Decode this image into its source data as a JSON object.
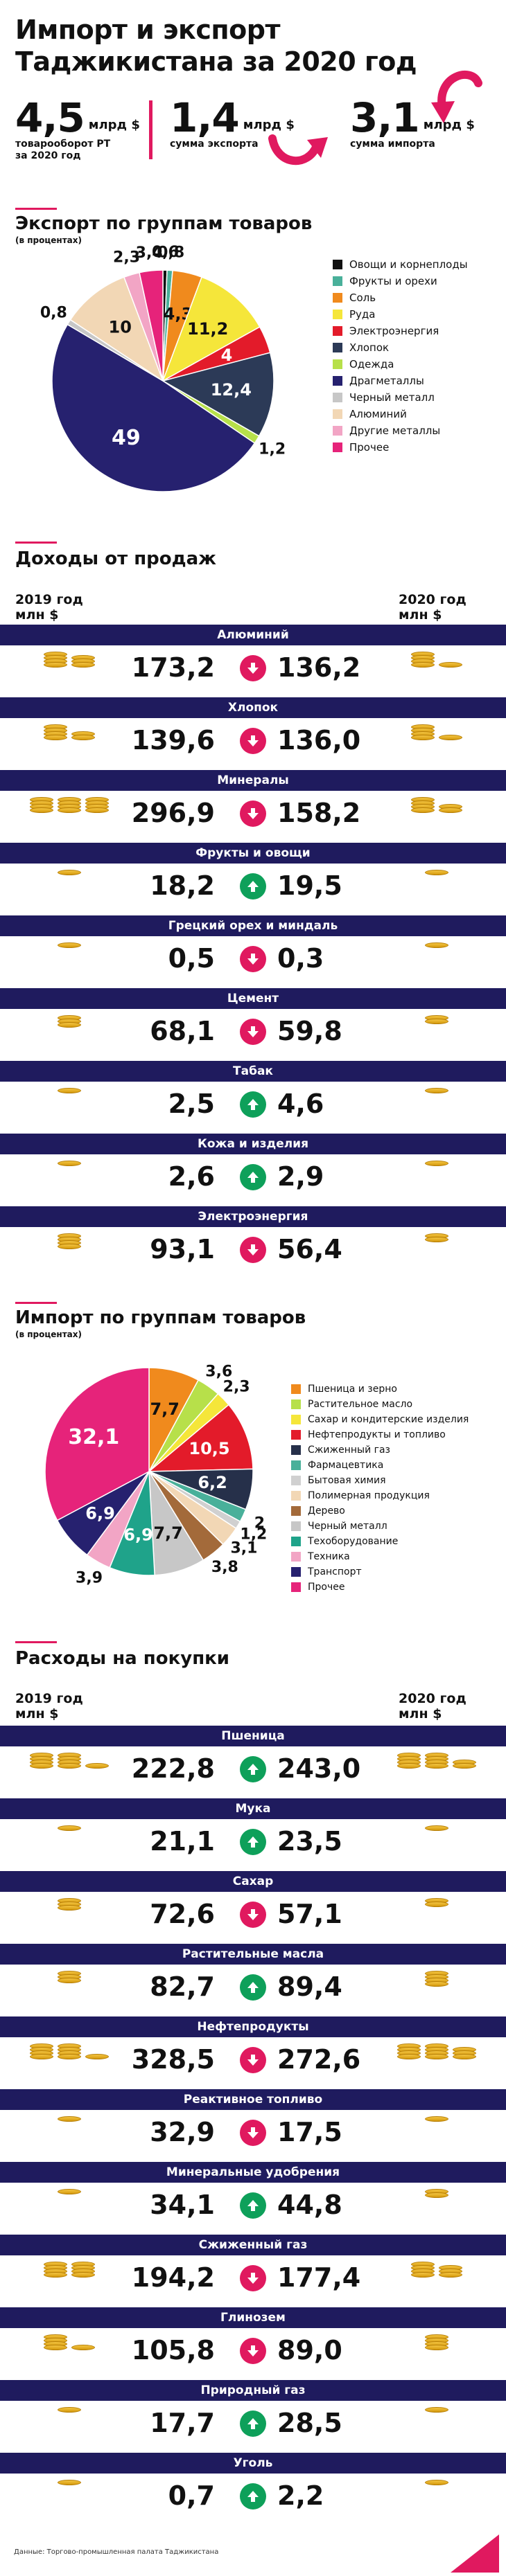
{
  "header": {
    "title_line1": "Импорт и экспорт",
    "title_line2": "Таджикистана за 2020 год",
    "stats": [
      {
        "value": "4,5",
        "unit": "млрд $",
        "desc1": "товарооборот РТ",
        "desc2": "за 2020 год"
      },
      {
        "value": "1,4",
        "unit": "млрд $",
        "desc1": "сумма экспорта",
        "desc2": ""
      },
      {
        "value": "3,1",
        "unit": "млрд $",
        "desc1": "сумма импорта",
        "desc2": ""
      }
    ],
    "colors": {
      "accent": "#e0195f",
      "navy": "#1f1b5e",
      "green": "#0ea05a"
    }
  },
  "export_section": {
    "title": "Экспорт по группам товаров",
    "subtitle": "(в процентах)"
  },
  "income_section": {
    "title": "Доходы от продаж",
    "year_left": "2019 год",
    "year_right": "2020 год",
    "unit": "млн $"
  },
  "import_section": {
    "title": "Импорт по группам товаров",
    "subtitle": "(в процентах)"
  },
  "expense_section": {
    "title": "Расходы на покупки",
    "year_left": "2019 год",
    "year_right": "2020 год",
    "unit": "млн $"
  },
  "footer": {
    "source": "Данные: Торгово-промышленная палата Таджикистана"
  },
  "chart_data": [
    {
      "type": "pie",
      "title": "Экспорт по группам товаров",
      "subtitle": "(в процентах)",
      "legend_position": "right",
      "categories": [
        "Овощи и корнеплоды",
        "Фрукты и орехи",
        "Соль",
        "Руда",
        "Электроэнергия",
        "Хлопок",
        "Одежда",
        "Драгметаллы",
        "Черный металл",
        "Алюминий",
        "Другие металлы",
        "Прочее"
      ],
      "values": [
        0.6,
        0.8,
        4.3,
        11.2,
        4.0,
        12.4,
        1.2,
        49.0,
        0.8,
        10.0,
        2.3,
        3.4
      ],
      "colors": [
        "#111111",
        "#49b09a",
        "#f08a1d",
        "#f5e63a",
        "#e31b2a",
        "#2c3a57",
        "#b7e04a",
        "#26216f",
        "#c7c7c7",
        "#f2d7b5",
        "#f2a5c5",
        "#e6237a"
      ]
    },
    {
      "type": "table",
      "title": "Доходы от продаж",
      "columns": [
        "2019 год, млн $",
        "2020 год, млн $"
      ],
      "rows": [
        {
          "name": "Алюминий",
          "v2019": "173,2",
          "v2020": "136,2",
          "trend": "down"
        },
        {
          "name": "Хлопок",
          "v2019": "139,6",
          "v2020": "136,0",
          "trend": "down"
        },
        {
          "name": "Минералы",
          "v2019": "296,9",
          "v2020": "158,2",
          "trend": "down"
        },
        {
          "name": "Фрукты и овощи",
          "v2019": "18,2",
          "v2020": "19,5",
          "trend": "up"
        },
        {
          "name": "Грецкий орех и миндаль",
          "v2019": "0,5",
          "v2020": "0,3",
          "trend": "down"
        },
        {
          "name": "Цемент",
          "v2019": "68,1",
          "v2020": "59,8",
          "trend": "down"
        },
        {
          "name": "Табак",
          "v2019": "2,5",
          "v2020": "4,6",
          "trend": "up"
        },
        {
          "name": "Кожа и изделия",
          "v2019": "2,6",
          "v2020": "2,9",
          "trend": "up"
        },
        {
          "name": "Электроэнергия",
          "v2019": "93,1",
          "v2020": "56,4",
          "trend": "down"
        }
      ]
    },
    {
      "type": "pie",
      "title": "Импорт по группам товаров",
      "subtitle": "(в процентах)",
      "legend_position": "right",
      "categories": [
        "Пшеница и зерно",
        "Растительное масло",
        "Сахар и кондитерские изделия",
        "Нефтепродукты и топливо",
        "Сжиженный газ",
        "Фармацевтика",
        "Бытовая химия",
        "Полимерная продукция",
        "Дерево",
        "Черный металл",
        "Техоборудование",
        "Техника",
        "Транспорт",
        "Прочее"
      ],
      "values": [
        7.7,
        3.6,
        2.3,
        10.5,
        6.2,
        2.0,
        1.2,
        3.1,
        3.8,
        7.7,
        6.9,
        3.9,
        6.9,
        32.1
      ],
      "colors": [
        "#f08a1d",
        "#b7e04a",
        "#f5e63a",
        "#e31b2a",
        "#26304a",
        "#49b09a",
        "#d0d0d0",
        "#f2d7b5",
        "#a36a3a",
        "#c7c7c7",
        "#1fa38a",
        "#f2a5c5",
        "#26216f",
        "#e6237a"
      ]
    },
    {
      "type": "table",
      "title": "Расходы на покупки",
      "columns": [
        "2019 год, млн $",
        "2020 год, млн $"
      ],
      "rows": [
        {
          "name": "Пшеница",
          "v2019": "222,8",
          "v2020": "243,0",
          "trend": "up"
        },
        {
          "name": "Мука",
          "v2019": "21,1",
          "v2020": "23,5",
          "trend": "up"
        },
        {
          "name": "Сахар",
          "v2019": "72,6",
          "v2020": "57,1",
          "trend": "down"
        },
        {
          "name": "Растительные масла",
          "v2019": "82,7",
          "v2020": "89,4",
          "trend": "up"
        },
        {
          "name": "Нефтепродукты",
          "v2019": "328,5",
          "v2020": "272,6",
          "trend": "down"
        },
        {
          "name": "Реактивное топливо",
          "v2019": "32,9",
          "v2020": "17,5",
          "trend": "down"
        },
        {
          "name": "Минеральные удобрения",
          "v2019": "34,1",
          "v2020": "44,8",
          "trend": "up"
        },
        {
          "name": "Сжиженный газ",
          "v2019": "194,2",
          "v2020": "177,4",
          "trend": "down"
        },
        {
          "name": "Глинозем",
          "v2019": "105,8",
          "v2020": "89,0",
          "trend": "down"
        },
        {
          "name": "Природный газ",
          "v2019": "17,7",
          "v2020": "28,5",
          "trend": "up"
        },
        {
          "name": "Уголь",
          "v2019": "0,7",
          "v2020": "2,2",
          "trend": "up"
        }
      ]
    }
  ]
}
